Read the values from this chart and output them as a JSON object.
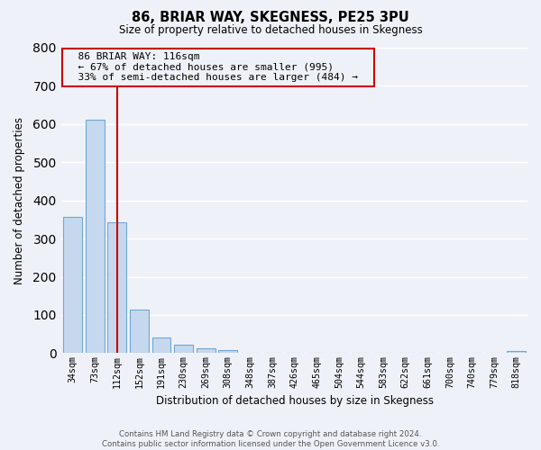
{
  "title": "86, BRIAR WAY, SKEGNESS, PE25 3PU",
  "subtitle": "Size of property relative to detached houses in Skegness",
  "xlabel": "Distribution of detached houses by size in Skegness",
  "ylabel": "Number of detached properties",
  "bar_labels": [
    "34sqm",
    "73sqm",
    "112sqm",
    "152sqm",
    "191sqm",
    "230sqm",
    "269sqm",
    "308sqm",
    "348sqm",
    "387sqm",
    "426sqm",
    "465sqm",
    "504sqm",
    "544sqm",
    "583sqm",
    "622sqm",
    "661sqm",
    "700sqm",
    "740sqm",
    "779sqm",
    "818sqm"
  ],
  "bar_values": [
    357,
    611,
    343,
    114,
    40,
    22,
    13,
    7,
    0,
    0,
    0,
    0,
    0,
    0,
    0,
    0,
    0,
    0,
    0,
    0,
    5
  ],
  "bar_color": "#c5d8ed",
  "bar_edge_color": "#6fa8d6",
  "vline_x": 2.0,
  "vline_color": "#cc0000",
  "ylim": [
    0,
    800
  ],
  "yticks": [
    0,
    100,
    200,
    300,
    400,
    500,
    600,
    700,
    800
  ],
  "annotation_title": "86 BRIAR WAY: 116sqm",
  "annotation_line1": "← 67% of detached houses are smaller (995)",
  "annotation_line2": "33% of semi-detached houses are larger (484) →",
  "footer_line1": "Contains HM Land Registry data © Crown copyright and database right 2024.",
  "footer_line2": "Contains public sector information licensed under the Open Government Licence v3.0.",
  "bg_color": "#eef2f8",
  "grid_color": "#ffffff"
}
